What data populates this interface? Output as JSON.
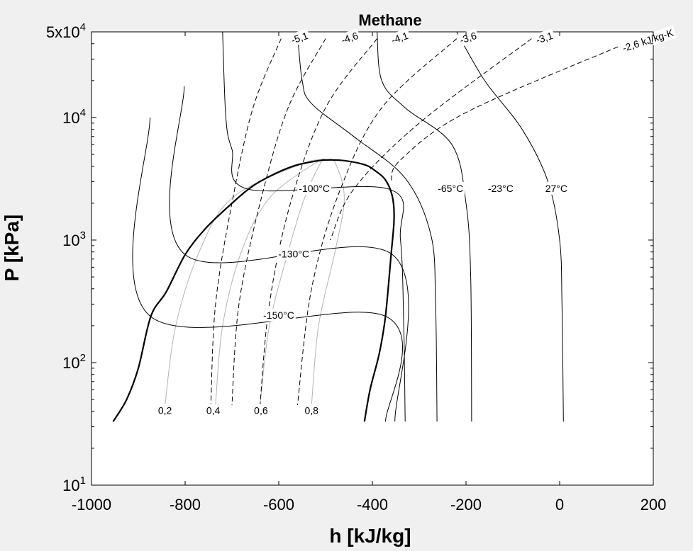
{
  "chart_data": {
    "type": "line",
    "title": "Methane",
    "xlabel": "h [kJ/kg]",
    "ylabel": "P [kPa]",
    "xlim": [
      -1000,
      200
    ],
    "ylim": [
      10,
      50000
    ],
    "y_scale": "log",
    "x_ticks": [
      "-1000",
      "-800",
      "-600",
      "-400",
      "-200",
      "0",
      "200"
    ],
    "y_ticks": [
      {
        "base": "10",
        "exp": "1",
        "value": 10
      },
      {
        "base": "10",
        "exp": "2",
        "value": 100
      },
      {
        "base": "10",
        "exp": "3",
        "value": 1000
      },
      {
        "base": "10",
        "exp": "4",
        "value": 10000
      },
      {
        "base": "5x10",
        "exp": "4",
        "value": 50000
      }
    ],
    "grid": false,
    "saturation_dome": {
      "liquid": [
        [
          -954,
          33
        ],
        [
          -925,
          50
        ],
        [
          -900,
          90
        ],
        [
          -873,
          240
        ],
        [
          -840,
          380
        ],
        [
          -800,
          760
        ],
        [
          -760,
          1200
        ],
        [
          -720,
          1700
        ],
        [
          -665,
          2600
        ],
        [
          -620,
          3300
        ],
        [
          -570,
          4000
        ],
        [
          -530,
          4350
        ],
        [
          -500,
          4500
        ]
      ],
      "vapor": [
        [
          -500,
          4500
        ],
        [
          -460,
          4450
        ],
        [
          -415,
          4100
        ],
        [
          -395,
          3700
        ],
        [
          -375,
          3200
        ],
        [
          -362,
          2600
        ],
        [
          -355,
          2000
        ],
        [
          -354,
          1400
        ],
        [
          -360,
          760
        ],
        [
          -372,
          240
        ],
        [
          -385,
          120
        ],
        [
          -405,
          60
        ],
        [
          -417,
          33
        ]
      ]
    },
    "isotherms": [
      {
        "name": "-150°C",
        "points": [
          [
            -875,
            10000
          ],
          [
            -875,
            240
          ],
          [
            -373,
            240
          ],
          [
            -372,
            33
          ]
        ]
      },
      {
        "name": "-130°C",
        "points": [
          [
            -802,
            18000
          ],
          [
            -800,
            760
          ],
          [
            -357,
            760
          ],
          [
            -352,
            33
          ]
        ]
      },
      {
        "name": "-100°C",
        "points": [
          [
            -720,
            50000
          ],
          [
            -713,
            10000
          ],
          [
            -700,
            5500
          ],
          [
            -665,
            2600
          ],
          [
            -364,
            2600
          ],
          [
            -340,
            1000
          ],
          [
            -333,
            200
          ],
          [
            -330,
            33
          ]
        ]
      },
      {
        "name": "-65°C",
        "points": [
          [
            -560,
            50000
          ],
          [
            -550,
            20000
          ],
          [
            -530,
            13000
          ],
          [
            -440,
            7000
          ],
          [
            -330,
            3200
          ],
          [
            -275,
            1100
          ],
          [
            -265,
            300
          ],
          [
            -262,
            33
          ]
        ]
      },
      {
        "name": "-23°C",
        "points": [
          [
            -390,
            50000
          ],
          [
            -380,
            20000
          ],
          [
            -330,
            12000
          ],
          [
            -230,
            6000
          ],
          [
            -200,
            2000
          ],
          [
            -190,
            500
          ],
          [
            -188,
            33
          ]
        ]
      },
      {
        "name": "27°C",
        "points": [
          [
            -220,
            50000
          ],
          [
            -160,
            20000
          ],
          [
            -80,
            8000
          ],
          [
            -25,
            3000
          ],
          [
            0,
            1000
          ],
          [
            5,
            300
          ],
          [
            8,
            33
          ]
        ]
      }
    ],
    "isentropes": [
      {
        "name": "-5,1",
        "points": [
          [
            -595,
            44000
          ],
          [
            -655,
            12000
          ],
          [
            -700,
            2000
          ],
          [
            -735,
            300
          ],
          [
            -745,
            45
          ]
        ]
      },
      {
        "name": "-4,6",
        "points": [
          [
            -500,
            44000
          ],
          [
            -580,
            12000
          ],
          [
            -640,
            2000
          ],
          [
            -685,
            300
          ],
          [
            -700,
            45
          ]
        ]
      },
      {
        "name": "-4,1",
        "points": [
          [
            -390,
            44000
          ],
          [
            -500,
            12000
          ],
          [
            -575,
            2000
          ],
          [
            -620,
            300
          ],
          [
            -640,
            45
          ]
        ]
      },
      {
        "name": "-3,6",
        "points": [
          [
            -220,
            44000
          ],
          [
            -380,
            12000
          ],
          [
            -470,
            2500
          ],
          [
            -530,
            400
          ],
          [
            -560,
            45
          ]
        ]
      },
      {
        "name": "-3,1",
        "points": [
          [
            -60,
            44000
          ],
          [
            -300,
            9000
          ],
          [
            -440,
            2600
          ],
          [
            -490,
            1000
          ]
        ]
      },
      {
        "name": "-2,6 kJ/kg-K",
        "points": [
          [
            140,
            40000
          ],
          [
            -200,
            11000
          ],
          [
            -340,
            4500
          ],
          [
            -360,
            3000
          ]
        ]
      }
    ],
    "quality_lines": [
      {
        "name": "0,2",
        "points": [
          [
            -843,
            45
          ],
          [
            -820,
            200
          ],
          [
            -770,
            800
          ],
          [
            -700,
            2200
          ],
          [
            -550,
            4200
          ],
          [
            -500,
            4500
          ]
        ]
      },
      {
        "name": "0,4",
        "points": [
          [
            -735,
            45
          ],
          [
            -720,
            200
          ],
          [
            -680,
            800
          ],
          [
            -620,
            2200
          ],
          [
            -520,
            4300
          ],
          [
            -500,
            4500
          ]
        ]
      },
      {
        "name": "0,6",
        "points": [
          [
            -640,
            45
          ],
          [
            -620,
            200
          ],
          [
            -580,
            800
          ],
          [
            -545,
            2200
          ],
          [
            -510,
            4300
          ],
          [
            -500,
            4500
          ]
        ]
      },
      {
        "name": "0,8",
        "points": [
          [
            -530,
            45
          ],
          [
            -515,
            200
          ],
          [
            -480,
            800
          ],
          [
            -460,
            2200
          ],
          [
            -480,
            4300
          ],
          [
            -500,
            4500
          ]
        ]
      }
    ]
  }
}
